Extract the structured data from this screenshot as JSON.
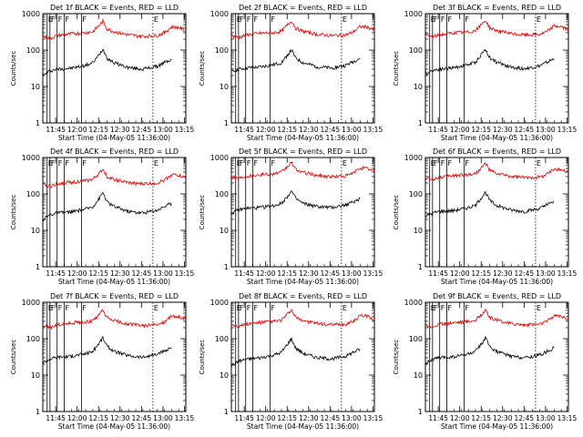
{
  "figure": {
    "xlabel": "Start Time (04-May-05 11:36:00)",
    "ylabel": "Counts/sec",
    "x_tick_labels": [
      "11:45",
      "12:00",
      "12:15",
      "12:30",
      "12:45",
      "13:00",
      "13:15"
    ],
    "y_tick_labels": [
      "1",
      "10",
      "100",
      "1000"
    ],
    "colors": {
      "events": "#000000",
      "lld": "#dd0000",
      "background": "#ffffff"
    }
  },
  "chart_data": [
    {
      "type": "line",
      "title": "Det 1f BLACK = Events, RED = LLD",
      "x_unit": "minutes since 11:36:00",
      "xlim": [
        0,
        100
      ],
      "y_scale": "log",
      "ylim": [
        1,
        1000
      ],
      "series": [
        {
          "name": "Events",
          "color": "#000000",
          "x": [
            0,
            5,
            10,
            20,
            30,
            35,
            40,
            42,
            45,
            50,
            60,
            70,
            80,
            85,
            90
          ],
          "y": [
            20,
            27,
            30,
            32,
            38,
            45,
            80,
            110,
            60,
            45,
            33,
            30,
            36,
            45,
            55
          ]
        },
        {
          "name": "LLD",
          "color": "#dd0000",
          "x": [
            0,
            5,
            10,
            20,
            30,
            35,
            40,
            42,
            45,
            50,
            60,
            70,
            80,
            85,
            90,
            95,
            100
          ],
          "y": [
            240,
            210,
            250,
            280,
            300,
            320,
            500,
            620,
            380,
            320,
            260,
            240,
            250,
            300,
            430,
            420,
            340
          ]
        }
      ],
      "markers": [
        {
          "label": "E",
          "x": 3,
          "style": "solid"
        },
        {
          "label": "F",
          "x": 5,
          "style": "solid"
        },
        {
          "label": "F",
          "x": 10,
          "style": "solid"
        },
        {
          "label": "F",
          "x": 15,
          "style": "solid"
        },
        {
          "label": "F",
          "x": 27,
          "style": "solid"
        },
        {
          "label": "E",
          "x": 77,
          "style": "dotted"
        }
      ]
    },
    {
      "type": "line",
      "title": "Det 2f BLACK = Events, RED = LLD",
      "x_unit": "minutes since 11:36:00",
      "xlim": [
        0,
        100
      ],
      "y_scale": "log",
      "ylim": [
        1,
        1000
      ],
      "series": [
        {
          "name": "Events",
          "color": "#000000",
          "x": [
            0,
            5,
            10,
            20,
            30,
            35,
            40,
            42,
            45,
            50,
            60,
            70,
            80,
            85,
            90
          ],
          "y": [
            25,
            30,
            32,
            34,
            40,
            45,
            80,
            100,
            60,
            45,
            35,
            32,
            38,
            48,
            60
          ]
        },
        {
          "name": "LLD",
          "color": "#dd0000",
          "x": [
            0,
            5,
            10,
            20,
            30,
            35,
            40,
            42,
            45,
            50,
            60,
            70,
            80,
            85,
            90,
            95,
            100
          ],
          "y": [
            250,
            220,
            260,
            290,
            300,
            330,
            520,
            640,
            400,
            330,
            270,
            250,
            260,
            310,
            440,
            430,
            350
          ]
        }
      ],
      "markers": [
        {
          "label": "E",
          "x": 3,
          "style": "solid"
        },
        {
          "label": "F",
          "x": 5,
          "style": "solid"
        },
        {
          "label": "F",
          "x": 10,
          "style": "solid"
        },
        {
          "label": "F",
          "x": 15,
          "style": "solid"
        },
        {
          "label": "F",
          "x": 27,
          "style": "solid"
        },
        {
          "label": "E",
          "x": 77,
          "style": "dotted"
        }
      ]
    },
    {
      "type": "line",
      "title": "Det 3f BLACK = Events, RED = LLD",
      "x_unit": "minutes since 11:36:00",
      "xlim": [
        0,
        100
      ],
      "y_scale": "log",
      "ylim": [
        1,
        1000
      ],
      "series": [
        {
          "name": "Events",
          "color": "#000000",
          "x": [
            0,
            5,
            10,
            20,
            30,
            35,
            40,
            42,
            45,
            50,
            60,
            70,
            80,
            85,
            90
          ],
          "y": [
            22,
            28,
            30,
            33,
            40,
            46,
            85,
            105,
            62,
            46,
            34,
            31,
            37,
            46,
            58
          ]
        },
        {
          "name": "LLD",
          "color": "#dd0000",
          "x": [
            0,
            5,
            10,
            20,
            30,
            35,
            40,
            42,
            45,
            50,
            60,
            70,
            80,
            85,
            90,
            95,
            100
          ],
          "y": [
            260,
            230,
            260,
            300,
            310,
            340,
            540,
            660,
            410,
            340,
            280,
            260,
            270,
            320,
            460,
            440,
            360
          ]
        }
      ],
      "markers": [
        {
          "label": "E",
          "x": 3,
          "style": "solid"
        },
        {
          "label": "F",
          "x": 5,
          "style": "solid"
        },
        {
          "label": "F",
          "x": 10,
          "style": "solid"
        },
        {
          "label": "F",
          "x": 15,
          "style": "solid"
        },
        {
          "label": "F",
          "x": 27,
          "style": "solid"
        },
        {
          "label": "E",
          "x": 77,
          "style": "dotted"
        }
      ]
    },
    {
      "type": "line",
      "title": "Det 4f BLACK = Events, RED = LLD",
      "x_unit": "minutes since 11:36:00",
      "xlim": [
        0,
        100
      ],
      "y_scale": "log",
      "ylim": [
        1,
        1000
      ],
      "series": [
        {
          "name": "Events",
          "color": "#000000",
          "x": [
            0,
            5,
            10,
            20,
            30,
            35,
            40,
            42,
            45,
            50,
            60,
            70,
            80,
            85,
            90
          ],
          "y": [
            20,
            27,
            30,
            32,
            38,
            45,
            80,
            110,
            60,
            45,
            33,
            30,
            36,
            45,
            55
          ]
        },
        {
          "name": "LLD",
          "color": "#dd0000",
          "x": [
            0,
            5,
            10,
            20,
            30,
            35,
            40,
            42,
            45,
            50,
            60,
            70,
            80,
            85,
            90,
            95,
            100
          ],
          "y": [
            180,
            160,
            190,
            210,
            230,
            250,
            380,
            480,
            300,
            250,
            200,
            190,
            200,
            240,
            340,
            330,
            270
          ]
        }
      ],
      "markers": [
        {
          "label": "E",
          "x": 3,
          "style": "solid"
        },
        {
          "label": "F",
          "x": 5,
          "style": "solid"
        },
        {
          "label": "F",
          "x": 10,
          "style": "solid"
        },
        {
          "label": "F",
          "x": 15,
          "style": "solid"
        },
        {
          "label": "F",
          "x": 27,
          "style": "solid"
        },
        {
          "label": "E",
          "x": 77,
          "style": "dotted"
        }
      ]
    },
    {
      "type": "line",
      "title": "Det 5f BLACK = Events, RED = LLD",
      "x_unit": "minutes since 11:36:00",
      "xlim": [
        0,
        100
      ],
      "y_scale": "log",
      "ylim": [
        1,
        1000
      ],
      "series": [
        {
          "name": "Events",
          "color": "#000000",
          "x": [
            0,
            5,
            10,
            20,
            30,
            35,
            40,
            42,
            45,
            50,
            60,
            70,
            80,
            85,
            90
          ],
          "y": [
            30,
            36,
            40,
            42,
            48,
            55,
            95,
            120,
            75,
            55,
            45,
            42,
            50,
            60,
            75
          ]
        },
        {
          "name": "LLD",
          "color": "#dd0000",
          "x": [
            0,
            5,
            10,
            20,
            30,
            35,
            40,
            42,
            45,
            50,
            60,
            70,
            80,
            85,
            90,
            95,
            100
          ],
          "y": [
            300,
            270,
            310,
            340,
            360,
            390,
            600,
            740,
            470,
            390,
            320,
            300,
            310,
            370,
            520,
            500,
            410
          ]
        }
      ],
      "markers": [
        {
          "label": "E",
          "x": 3,
          "style": "solid"
        },
        {
          "label": "F",
          "x": 5,
          "style": "solid"
        },
        {
          "label": "F",
          "x": 10,
          "style": "solid"
        },
        {
          "label": "F",
          "x": 15,
          "style": "solid"
        },
        {
          "label": "F",
          "x": 27,
          "style": "solid"
        },
        {
          "label": "E",
          "x": 77,
          "style": "dotted"
        }
      ]
    },
    {
      "type": "line",
      "title": "Det 6f BLACK = Events, RED = LLD",
      "x_unit": "minutes since 11:36:00",
      "xlim": [
        0,
        100
      ],
      "y_scale": "log",
      "ylim": [
        1,
        1000
      ],
      "series": [
        {
          "name": "Events",
          "color": "#000000",
          "x": [
            0,
            5,
            10,
            20,
            30,
            35,
            40,
            42,
            45,
            50,
            60,
            70,
            80,
            85,
            90
          ],
          "y": [
            24,
            30,
            33,
            35,
            42,
            48,
            88,
            112,
            66,
            48,
            36,
            33,
            40,
            50,
            62
          ]
        },
        {
          "name": "LLD",
          "color": "#dd0000",
          "x": [
            0,
            5,
            10,
            20,
            30,
            35,
            40,
            42,
            45,
            50,
            60,
            70,
            80,
            85,
            90,
            95,
            100
          ],
          "y": [
            280,
            250,
            290,
            320,
            340,
            360,
            560,
            700,
            440,
            360,
            300,
            280,
            290,
            350,
            490,
            470,
            390
          ]
        }
      ],
      "markers": [
        {
          "label": "E",
          "x": 3,
          "style": "solid"
        },
        {
          "label": "F",
          "x": 5,
          "style": "solid"
        },
        {
          "label": "F",
          "x": 10,
          "style": "solid"
        },
        {
          "label": "F",
          "x": 15,
          "style": "solid"
        },
        {
          "label": "F",
          "x": 27,
          "style": "solid"
        },
        {
          "label": "E",
          "x": 77,
          "style": "dotted"
        }
      ]
    },
    {
      "type": "line",
      "title": "Det 7f BLACK = Events, RED = LLD",
      "x_unit": "minutes since 11:36:00",
      "xlim": [
        0,
        100
      ],
      "y_scale": "log",
      "ylim": [
        1,
        1000
      ],
      "series": [
        {
          "name": "Events",
          "color": "#000000",
          "x": [
            0,
            5,
            10,
            20,
            30,
            35,
            40,
            42,
            45,
            50,
            60,
            70,
            80,
            85,
            90
          ],
          "y": [
            22,
            28,
            31,
            33,
            39,
            45,
            82,
            108,
            61,
            45,
            34,
            31,
            37,
            46,
            57
          ]
        },
        {
          "name": "LLD",
          "color": "#dd0000",
          "x": [
            0,
            5,
            10,
            20,
            30,
            35,
            40,
            42,
            45,
            50,
            60,
            70,
            80,
            85,
            90,
            95,
            100
          ],
          "y": [
            230,
            200,
            240,
            270,
            290,
            310,
            480,
            600,
            370,
            310,
            250,
            230,
            240,
            290,
            410,
            400,
            330
          ]
        }
      ],
      "markers": [
        {
          "label": "E",
          "x": 3,
          "style": "solid"
        },
        {
          "label": "F",
          "x": 5,
          "style": "solid"
        },
        {
          "label": "F",
          "x": 10,
          "style": "solid"
        },
        {
          "label": "F",
          "x": 15,
          "style": "solid"
        },
        {
          "label": "F",
          "x": 27,
          "style": "solid"
        },
        {
          "label": "E",
          "x": 77,
          "style": "dotted"
        }
      ]
    },
    {
      "type": "line",
      "title": "Det 8f BLACK = Events, RED = LLD",
      "x_unit": "minutes since 11:36:00",
      "xlim": [
        0,
        100
      ],
      "y_scale": "log",
      "ylim": [
        1,
        1000
      ],
      "series": [
        {
          "name": "Events",
          "color": "#000000",
          "x": [
            0,
            5,
            10,
            20,
            30,
            35,
            40,
            42,
            45,
            50,
            60,
            70,
            80,
            85,
            90
          ],
          "y": [
            18,
            24,
            27,
            30,
            36,
            42,
            78,
            100,
            55,
            40,
            30,
            28,
            33,
            42,
            52
          ]
        },
        {
          "name": "LLD",
          "color": "#dd0000",
          "x": [
            0,
            5,
            10,
            20,
            30,
            35,
            40,
            42,
            45,
            50,
            60,
            70,
            80,
            85,
            90,
            95,
            100
          ],
          "y": [
            250,
            220,
            250,
            280,
            300,
            320,
            500,
            620,
            380,
            320,
            260,
            240,
            250,
            300,
            430,
            420,
            340
          ]
        }
      ],
      "markers": [
        {
          "label": "E",
          "x": 3,
          "style": "solid"
        },
        {
          "label": "F",
          "x": 5,
          "style": "solid"
        },
        {
          "label": "F",
          "x": 10,
          "style": "solid"
        },
        {
          "label": "F",
          "x": 15,
          "style": "solid"
        },
        {
          "label": "F",
          "x": 27,
          "style": "solid"
        },
        {
          "label": "E",
          "x": 77,
          "style": "dotted"
        }
      ]
    },
    {
      "type": "line",
      "title": "Det 9f BLACK = Events, RED = LLD",
      "x_unit": "minutes since 11:36:00",
      "xlim": [
        0,
        100
      ],
      "y_scale": "log",
      "ylim": [
        1,
        1000
      ],
      "series": [
        {
          "name": "Events",
          "color": "#000000",
          "x": [
            0,
            5,
            10,
            20,
            30,
            35,
            40,
            42,
            45,
            50,
            60,
            70,
            80,
            85,
            90
          ],
          "y": [
            21,
            27,
            30,
            32,
            38,
            44,
            80,
            104,
            60,
            44,
            33,
            30,
            36,
            45,
            56
          ]
        },
        {
          "name": "LLD",
          "color": "#dd0000",
          "x": [
            0,
            5,
            10,
            20,
            30,
            35,
            40,
            42,
            45,
            50,
            60,
            70,
            80,
            85,
            90,
            95,
            100
          ],
          "y": [
            240,
            210,
            250,
            280,
            300,
            320,
            500,
            620,
            380,
            320,
            260,
            240,
            250,
            300,
            430,
            420,
            340
          ]
        }
      ],
      "markers": [
        {
          "label": "E",
          "x": 3,
          "style": "solid"
        },
        {
          "label": "F",
          "x": 5,
          "style": "solid"
        },
        {
          "label": "F",
          "x": 10,
          "style": "solid"
        },
        {
          "label": "F",
          "x": 15,
          "style": "solid"
        },
        {
          "label": "F",
          "x": 27,
          "style": "solid"
        },
        {
          "label": "E",
          "x": 77,
          "style": "dotted"
        }
      ]
    }
  ]
}
